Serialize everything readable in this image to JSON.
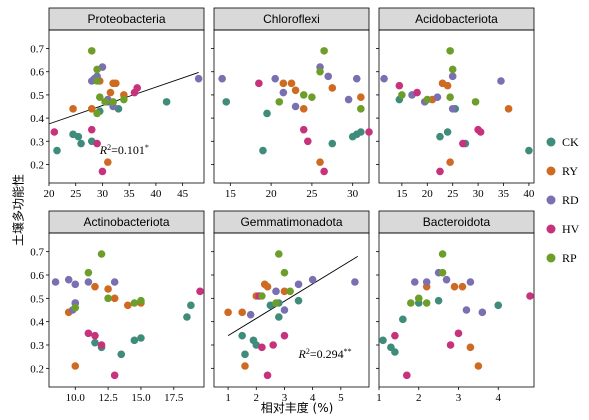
{
  "chart_data": {
    "type": "scatter",
    "ylabel": "土壤多功能性",
    "xlabel": "相对丰度 (%)",
    "ylim": [
      0.12,
      0.78
    ],
    "yticks": [
      0.2,
      0.3,
      0.4,
      0.5,
      0.6,
      0.7
    ],
    "colors": {
      "CK": "#3f8c7a",
      "RY": "#cf6a22",
      "RD": "#7a6fb0",
      "HV": "#c7327c",
      "RP": "#6e9e2a"
    },
    "legend": {
      "position": "right",
      "items": [
        {
          "label": "CK",
          "color": "#3f8c7a"
        },
        {
          "label": "RY",
          "color": "#cf6a22"
        },
        {
          "label": "RD",
          "color": "#7a6fb0"
        },
        {
          "label": "HV",
          "color": "#c7327c"
        },
        {
          "label": "RP",
          "color": "#6e9e2a"
        }
      ]
    },
    "panels": [
      {
        "title": "Proteobacteria",
        "xlim": [
          20,
          49
        ],
        "xticks": [
          20,
          25,
          30,
          35,
          40,
          45
        ],
        "annotation": {
          "text": "=0.101",
          "sup": "*",
          "x": 29.5,
          "y": 0.245
        },
        "fit": {
          "x": [
            20,
            48
          ],
          "y": [
            0.375,
            0.597
          ]
        },
        "points": {
          "CK": [
            [
              21.5,
              0.26
            ],
            [
              24.5,
              0.33
            ],
            [
              25.5,
              0.32
            ],
            [
              26,
              0.29
            ],
            [
              28,
              0.3
            ],
            [
              29.5,
              0.43
            ],
            [
              31,
              0.47
            ],
            [
              33,
              0.44
            ],
            [
              42,
              0.47
            ]
          ],
          "RY": [
            [
              24.5,
              0.44
            ],
            [
              28,
              0.44
            ],
            [
              29.5,
              0.56
            ],
            [
              31.5,
              0.51
            ],
            [
              32,
              0.55
            ],
            [
              32.5,
              0.55
            ],
            [
              34,
              0.5
            ],
            [
              31,
              0.21
            ]
          ],
          "RD": [
            [
              28,
              0.56
            ],
            [
              28.5,
              0.57
            ],
            [
              29,
              0.58
            ],
            [
              30,
              0.62
            ],
            [
              31,
              0.48
            ],
            [
              32,
              0.45
            ],
            [
              48,
              0.57
            ]
          ],
          "HV": [
            [
              21,
              0.34
            ],
            [
              28,
              0.35
            ],
            [
              29,
              0.29
            ],
            [
              30,
              0.17
            ],
            [
              36,
              0.51
            ],
            [
              36.5,
              0.53
            ]
          ],
          "RP": [
            [
              28,
              0.69
            ],
            [
              29,
              0.61
            ],
            [
              29,
              0.56
            ],
            [
              29.5,
              0.49
            ],
            [
              30.5,
              0.47
            ],
            [
              32,
              0.47
            ],
            [
              34,
              0.48
            ],
            [
              29,
              0.42
            ]
          ]
        }
      },
      {
        "title": "Chloroflexi",
        "xlim": [
          13,
          32
        ],
        "xticks": [
          15,
          20,
          25,
          30
        ],
        "points": {
          "CK": [
            [
              14.5,
              0.47
            ],
            [
              19,
              0.26
            ],
            [
              19.5,
              0.42
            ],
            [
              27.5,
              0.29
            ],
            [
              30,
              0.32
            ],
            [
              30.5,
              0.33
            ],
            [
              31,
              0.34
            ]
          ],
          "RY": [
            [
              21.5,
              0.55
            ],
            [
              22.5,
              0.55
            ],
            [
              23,
              0.52
            ],
            [
              24,
              0.44
            ],
            [
              26,
              0.21
            ],
            [
              27.5,
              0.53
            ],
            [
              31,
              0.49
            ]
          ],
          "RD": [
            [
              14,
              0.57
            ],
            [
              20.5,
              0.57
            ],
            [
              21.5,
              0.51
            ],
            [
              23,
              0.45
            ],
            [
              26,
              0.62
            ],
            [
              27,
              0.58
            ],
            [
              29.5,
              0.48
            ],
            [
              30.5,
              0.57
            ]
          ],
          "HV": [
            [
              18.5,
              0.55
            ],
            [
              24,
              0.35
            ],
            [
              24.5,
              0.3
            ],
            [
              26.5,
              0.17
            ],
            [
              32,
              0.34
            ]
          ],
          "RP": [
            [
              21,
              0.47
            ],
            [
              24,
              0.5
            ],
            [
              25,
              0.49
            ],
            [
              26.5,
              0.69
            ],
            [
              26,
              0.6
            ],
            [
              31,
              0.44
            ]
          ]
        }
      },
      {
        "title": "Acidobacteriota",
        "xlim": [
          10.5,
          41
        ],
        "xticks": [
          15,
          20,
          25,
          30,
          35,
          40
        ],
        "points": {
          "CK": [
            [
              14.5,
              0.48
            ],
            [
              22.5,
              0.32
            ],
            [
              24,
              0.34
            ],
            [
              25.5,
              0.44
            ],
            [
              27.5,
              0.29
            ],
            [
              40,
              0.26
            ]
          ],
          "RY": [
            [
              21,
              0.48
            ],
            [
              23,
              0.55
            ],
            [
              24,
              0.54
            ],
            [
              24.5,
              0.21
            ],
            [
              36,
              0.44
            ]
          ],
          "RD": [
            [
              11.5,
              0.57
            ],
            [
              17,
              0.5
            ],
            [
              19.5,
              0.47
            ],
            [
              22,
              0.49
            ],
            [
              25,
              0.58
            ],
            [
              25,
              0.44
            ],
            [
              34.5,
              0.56
            ]
          ],
          "HV": [
            [
              14.5,
              0.54
            ],
            [
              18,
              0.51
            ],
            [
              22.5,
              0.17
            ],
            [
              27,
              0.29
            ],
            [
              30,
              0.35
            ],
            [
              30.5,
              0.34
            ]
          ],
          "RP": [
            [
              15,
              0.5
            ],
            [
              20,
              0.48
            ],
            [
              24.5,
              0.69
            ],
            [
              25,
              0.61
            ],
            [
              29.5,
              0.47
            ],
            [
              24.5,
              0.49
            ]
          ]
        }
      },
      {
        "title": "Actinobacteriota",
        "xlim": [
          8.0,
          19.8
        ],
        "xticks": [
          10.0,
          12.5,
          15.0,
          17.5
        ],
        "points": {
          "CK": [
            [
              10,
              0.48
            ],
            [
              11.5,
              0.31
            ],
            [
              12,
              0.29
            ],
            [
              13.5,
              0.26
            ],
            [
              14.5,
              0.32
            ],
            [
              15,
              0.33
            ],
            [
              18.5,
              0.42
            ],
            [
              18.8,
              0.47
            ]
          ],
          "RY": [
            [
              9.5,
              0.44
            ],
            [
              10,
              0.21
            ],
            [
              11.5,
              0.55
            ],
            [
              12.5,
              0.54
            ],
            [
              13,
              0.5
            ],
            [
              14,
              0.47
            ],
            [
              15,
              0.48
            ]
          ],
          "RD": [
            [
              8.5,
              0.57
            ],
            [
              9.5,
              0.58
            ],
            [
              10,
              0.56
            ],
            [
              11,
              0.57
            ],
            [
              9.8,
              0.45
            ],
            [
              10,
              0.48
            ],
            [
              13,
              0.57
            ]
          ],
          "HV": [
            [
              11,
              0.35
            ],
            [
              11.5,
              0.34
            ],
            [
              12,
              0.3
            ],
            [
              13,
              0.17
            ],
            [
              19.5,
              0.53
            ]
          ],
          "RP": [
            [
              10,
              0.46
            ],
            [
              11,
              0.61
            ],
            [
              12,
              0.69
            ],
            [
              12.5,
              0.5
            ],
            [
              14.5,
              0.48
            ],
            [
              15,
              0.49
            ]
          ]
        }
      },
      {
        "title": "Gemmatimonadota",
        "xlim": [
          0.5,
          6.0
        ],
        "xticks": [
          1,
          2,
          3,
          4,
          5
        ],
        "annotation": {
          "text": "=0.294",
          "sup": "**",
          "x": 3.5,
          "y": 0.245
        },
        "fit": {
          "x": [
            1.0,
            5.6
          ],
          "y": [
            0.34,
            0.68
          ]
        },
        "points": {
          "CK": [
            [
              1.5,
              0.34
            ],
            [
              1.6,
              0.26
            ],
            [
              1.9,
              0.32
            ],
            [
              2.0,
              0.3
            ],
            [
              2.5,
              0.47
            ],
            [
              2.8,
              0.48
            ],
            [
              2.8,
              0.42
            ],
            [
              3.5,
              0.49
            ]
          ],
          "RY": [
            [
              1.0,
              0.44
            ],
            [
              1.5,
              0.44
            ],
            [
              2.0,
              0.51
            ],
            [
              2.3,
              0.56
            ],
            [
              2.4,
              0.55
            ],
            [
              3.0,
              0.53
            ],
            [
              1.6,
              0.21
            ]
          ],
          "RD": [
            [
              1.8,
              0.43
            ],
            [
              3.0,
              0.45
            ],
            [
              3.5,
              0.56
            ],
            [
              4.0,
              0.58
            ],
            [
              5.5,
              0.57
            ],
            [
              2.7,
              0.53
            ]
          ],
          "HV": [
            [
              2.1,
              0.51
            ],
            [
              2.2,
              0.29
            ],
            [
              2.4,
              0.17
            ],
            [
              2.6,
              0.3
            ],
            [
              3.0,
              0.34
            ]
          ],
          "RP": [
            [
              2.8,
              0.69
            ],
            [
              3.0,
              0.61
            ],
            [
              3.2,
              0.53
            ],
            [
              2.7,
              0.48
            ],
            [
              2.2,
              0.51
            ]
          ]
        }
      },
      {
        "title": "Bacteroidota",
        "xlim": [
          1.0,
          4.9
        ],
        "xticks": [
          1,
          2,
          3,
          4
        ],
        "points": {
          "CK": [
            [
              1.1,
              0.32
            ],
            [
              1.3,
              0.29
            ],
            [
              1.4,
              0.27
            ],
            [
              1.6,
              0.41
            ],
            [
              2.0,
              0.48
            ],
            [
              2.5,
              0.49
            ],
            [
              4.0,
              0.47
            ]
          ],
          "RY": [
            [
              2.2,
              0.55
            ],
            [
              2.9,
              0.55
            ],
            [
              3.1,
              0.55
            ],
            [
              3.5,
              0.21
            ],
            [
              3.3,
              0.29
            ]
          ],
          "RD": [
            [
              1.9,
              0.57
            ],
            [
              2.2,
              0.57
            ],
            [
              2.5,
              0.61
            ],
            [
              2.7,
              0.58
            ],
            [
              3.2,
              0.45
            ],
            [
              3.3,
              0.57
            ],
            [
              3.6,
              0.44
            ]
          ],
          "HV": [
            [
              1.4,
              0.34
            ],
            [
              1.7,
              0.17
            ],
            [
              2.8,
              0.3
            ],
            [
              3.0,
              0.35
            ],
            [
              4.8,
              0.51
            ]
          ],
          "RP": [
            [
              1.8,
              0.48
            ],
            [
              2.0,
              0.5
            ],
            [
              2.2,
              0.48
            ],
            [
              2.6,
              0.69
            ],
            [
              2.6,
              0.61
            ]
          ]
        }
      }
    ]
  }
}
